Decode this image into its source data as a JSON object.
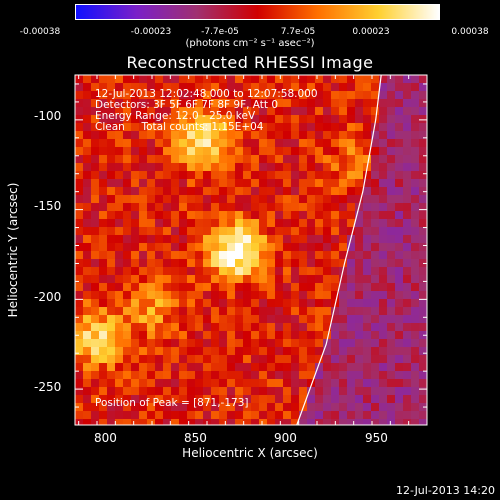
{
  "colorbar": {
    "ticks": [
      "-0.00038",
      "-0.00023",
      "-7.7e-05",
      "7.7e-05",
      "0.00023",
      "0.00038"
    ],
    "unit": "(photons cm⁻² s⁻¹ asec⁻²)"
  },
  "title": "Reconstructed RHESSI Image",
  "info": {
    "line1": "12-Jul-2013 12:02:48.000 to 12:07:58.000",
    "line2": "Detectors: 3F 5F 6F 7F 8F 9F, Att 0",
    "line3": "Energy Range: 12.0 - 25.0 keV",
    "line4": "Clean     Total counts: 1.15E+04",
    "peak": "Position of Peak = [871,-173]"
  },
  "timestamp": "12-Jul-2013 14:20",
  "chart_data": {
    "type": "heatmap",
    "title": "Reconstructed RHESSI Image",
    "xlabel": "Heliocentric X (arcsec)",
    "ylabel": "Heliocentric Y (arcsec)",
    "xlim": [
      783,
      975
    ],
    "ylim": [
      -270,
      -75
    ],
    "xticks": [
      800,
      850,
      900,
      950
    ],
    "yticks": [
      -100,
      -150,
      -200,
      -250
    ],
    "colorscale": [
      "#1010ff",
      "#7a20c8",
      "#a03070",
      "#d00000",
      "#ff7000",
      "#ffd030",
      "#ffffff"
    ],
    "vmin": -0.00038,
    "vmax": 0.00038,
    "peak_position": [
      871,
      -173
    ],
    "sources": [
      {
        "x": 871,
        "y": -173,
        "intensity": 0.00038
      },
      {
        "x": 853,
        "y": -110,
        "intensity": 0.0003
      },
      {
        "x": 795,
        "y": -222,
        "intensity": 0.00025
      },
      {
        "x": 825,
        "y": -205,
        "intensity": 0.00015
      },
      {
        "x": 935,
        "y": -123,
        "intensity": 0.00012
      }
    ],
    "limb_curve": [
      [
        904,
        -270
      ],
      [
        920,
        -225
      ],
      [
        930,
        -180
      ],
      [
        940,
        -140
      ],
      [
        947,
        -100
      ],
      [
        950,
        -75
      ]
    ]
  }
}
